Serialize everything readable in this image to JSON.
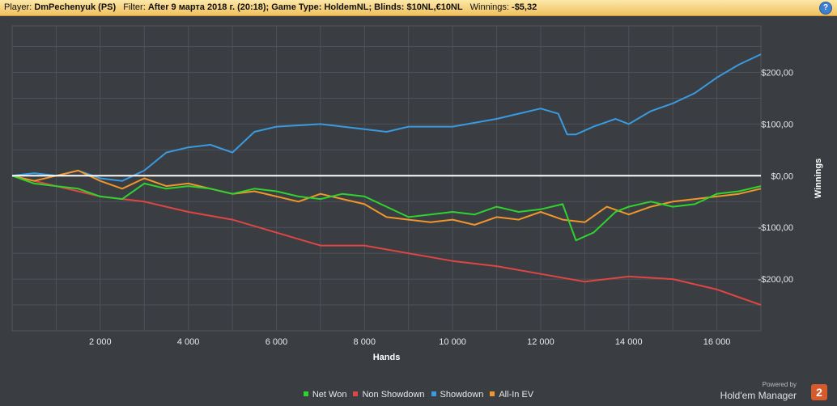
{
  "header": {
    "player_label": "Player:",
    "player_value": "DmPechenyuk (PS)",
    "filter_label": "Filter:",
    "filter_value": "After 9 марта 2018 г. (20:18); Game Type: HoldemNL; Blinds: $10NL,€10NL",
    "winnings_label": "Winnings:",
    "winnings_value": "-$5,32",
    "help_glyph": "?"
  },
  "brand": {
    "powered_by": "Powered by",
    "name": "Hold'em Manager",
    "badge": "2"
  },
  "chart_data": {
    "type": "line",
    "xlabel": "Hands",
    "ylabel": "Winnings",
    "xlim": [
      0,
      17000
    ],
    "ylim": [
      -300,
      290
    ],
    "x_ticks": [
      2000,
      4000,
      6000,
      8000,
      10000,
      12000,
      14000,
      16000
    ],
    "x_tick_labels": [
      "2 000",
      "4 000",
      "6 000",
      "8 000",
      "10 000",
      "12 000",
      "14 000",
      "16 000"
    ],
    "y_ticks": [
      200,
      100,
      0,
      -100,
      -200
    ],
    "y_tick_labels": [
      "$200,00",
      "$100,00",
      "$0,00",
      "-$100,00",
      "-$200,00"
    ],
    "grid": true,
    "legend_position": "bottom",
    "series": [
      {
        "name": "Net Won",
        "color": "#2fd32f",
        "x": [
          0,
          500,
          1000,
          1500,
          2000,
          2500,
          3000,
          3500,
          4000,
          4500,
          5000,
          5500,
          6000,
          6500,
          7000,
          7500,
          8000,
          8500,
          9000,
          9500,
          10000,
          10500,
          11000,
          11500,
          12000,
          12500,
          12800,
          13200,
          13700,
          14000,
          14500,
          15000,
          15500,
          16000,
          16500,
          17000
        ],
        "values": [
          0,
          -15,
          -20,
          -25,
          -40,
          -45,
          -15,
          -25,
          -20,
          -25,
          -35,
          -25,
          -30,
          -40,
          -45,
          -35,
          -40,
          -60,
          -80,
          -75,
          -70,
          -75,
          -60,
          -70,
          -65,
          -55,
          -125,
          -110,
          -70,
          -60,
          -50,
          -60,
          -55,
          -35,
          -30,
          -20
        ]
      },
      {
        "name": "Non Showdown",
        "color": "#e04545",
        "x": [
          0,
          1000,
          2000,
          3000,
          4000,
          5000,
          6000,
          7000,
          8000,
          9000,
          10000,
          11000,
          12000,
          13000,
          14000,
          15000,
          16000,
          16500,
          17000
        ],
        "values": [
          0,
          -20,
          -40,
          -50,
          -70,
          -85,
          -110,
          -135,
          -135,
          -150,
          -165,
          -175,
          -190,
          -205,
          -195,
          -200,
          -220,
          -235,
          -250
        ]
      },
      {
        "name": "Showdown",
        "color": "#3a9ae0",
        "x": [
          0,
          500,
          1000,
          1500,
          2000,
          2500,
          3000,
          3500,
          4000,
          4500,
          5000,
          5500,
          6000,
          7000,
          8000,
          8500,
          9000,
          10000,
          11000,
          11500,
          12000,
          12400,
          12600,
          12800,
          13200,
          13700,
          14000,
          14500,
          15000,
          15500,
          16000,
          16500,
          17000
        ],
        "values": [
          0,
          5,
          0,
          10,
          -5,
          -10,
          10,
          45,
          55,
          60,
          45,
          85,
          95,
          100,
          90,
          85,
          95,
          95,
          110,
          120,
          130,
          120,
          80,
          80,
          95,
          110,
          100,
          125,
          140,
          160,
          190,
          215,
          235
        ]
      },
      {
        "name": "All-In EV",
        "color": "#f0962a",
        "x": [
          0,
          500,
          1000,
          1500,
          2000,
          2500,
          3000,
          3500,
          4000,
          4500,
          5000,
          5500,
          6000,
          6500,
          7000,
          7500,
          8000,
          8500,
          9000,
          9500,
          10000,
          10500,
          11000,
          11500,
          12000,
          12500,
          13000,
          13500,
          14000,
          14500,
          15000,
          15500,
          16000,
          16500,
          17000
        ],
        "values": [
          0,
          -10,
          0,
          10,
          -10,
          -25,
          -5,
          -20,
          -15,
          -25,
          -35,
          -30,
          -40,
          -50,
          -35,
          -45,
          -55,
          -80,
          -85,
          -90,
          -85,
          -95,
          -80,
          -85,
          -70,
          -85,
          -90,
          -60,
          -75,
          -60,
          -50,
          -45,
          -40,
          -35,
          -25
        ]
      }
    ]
  }
}
